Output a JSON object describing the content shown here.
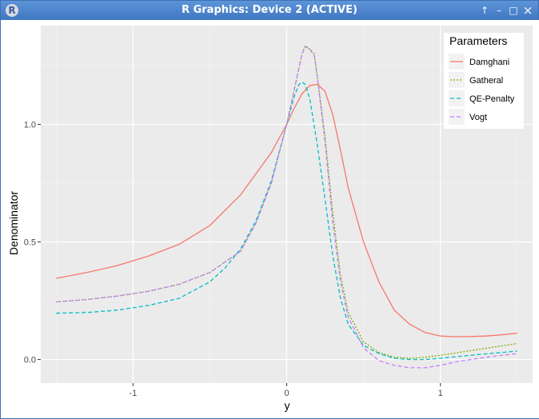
{
  "window": {
    "title": "R Graphics: Device 2 (ACTIVE)",
    "app_icon_letter": "R",
    "controls": {
      "up": "↑",
      "minimize": "–",
      "maximize": "□",
      "close": "×"
    }
  },
  "chart_data": {
    "type": "line",
    "xlabel": "y",
    "ylabel": "Denominator",
    "xlim": [
      -1.6,
      1.6
    ],
    "ylim": [
      -0.1,
      1.42
    ],
    "x_ticks": [
      {
        "v": -1,
        "label": "-1"
      },
      {
        "v": 0,
        "label": "0"
      },
      {
        "v": 1,
        "label": "1"
      }
    ],
    "y_ticks": [
      {
        "v": 0,
        "label": "0.0"
      },
      {
        "v": 0.5,
        "label": "0.5"
      },
      {
        "v": 1,
        "label": "1.0"
      }
    ],
    "grid": true,
    "legend": {
      "title": "Parameters",
      "position": "top-right"
    },
    "series": [
      {
        "name": "Damghani",
        "color": "#F8766D",
        "dash": "solid",
        "x": [
          -1.5,
          -1.3,
          -1.1,
          -0.9,
          -0.7,
          -0.5,
          -0.3,
          -0.2,
          -0.1,
          0,
          0.05,
          0.1,
          0.15,
          0.2,
          0.25,
          0.3,
          0.35,
          0.4,
          0.5,
          0.6,
          0.7,
          0.8,
          0.9,
          1.0,
          1.1,
          1.2,
          1.3,
          1.4,
          1.5
        ],
        "y": [
          0.345,
          0.37,
          0.4,
          0.44,
          0.49,
          0.57,
          0.7,
          0.79,
          0.88,
          1.0,
          1.07,
          1.13,
          1.165,
          1.17,
          1.14,
          1.04,
          0.89,
          0.73,
          0.5,
          0.33,
          0.21,
          0.15,
          0.115,
          0.1,
          0.097,
          0.098,
          0.1,
          0.105,
          0.112
        ]
      },
      {
        "name": "Gatheral",
        "color": "#7CAE00",
        "dash": "dot",
        "x": [
          -1.5,
          -1.3,
          -1.1,
          -0.9,
          -0.7,
          -0.5,
          -0.3,
          -0.2,
          -0.1,
          0,
          0.05,
          0.1,
          0.12,
          0.15,
          0.18,
          0.2,
          0.25,
          0.3,
          0.35,
          0.4,
          0.5,
          0.6,
          0.7,
          0.8,
          0.9,
          1.0,
          1.1,
          1.2,
          1.3,
          1.4,
          1.5
        ],
        "y": [
          0.245,
          0.255,
          0.27,
          0.29,
          0.32,
          0.37,
          0.46,
          0.58,
          0.75,
          1.0,
          1.15,
          1.3,
          1.335,
          1.32,
          1.3,
          1.2,
          0.95,
          0.62,
          0.36,
          0.2,
          0.075,
          0.03,
          0.01,
          0.005,
          0.01,
          0.018,
          0.028,
          0.038,
          0.048,
          0.058,
          0.068
        ]
      },
      {
        "name": "QE-Penalty",
        "color": "#00BFC4",
        "dash": "dash",
        "x": [
          -1.5,
          -1.3,
          -1.1,
          -0.9,
          -0.7,
          -0.5,
          -0.4,
          -0.3,
          -0.2,
          -0.1,
          0,
          0.05,
          0.08,
          0.1,
          0.12,
          0.15,
          0.2,
          0.25,
          0.3,
          0.35,
          0.4,
          0.5,
          0.6,
          0.7,
          0.8,
          0.9,
          1.0,
          1.1,
          1.2,
          1.3,
          1.4,
          1.5
        ],
        "y": [
          0.197,
          0.2,
          0.21,
          0.23,
          0.26,
          0.33,
          0.39,
          0.47,
          0.59,
          0.76,
          1.0,
          1.12,
          1.17,
          1.18,
          1.17,
          1.11,
          0.91,
          0.68,
          0.44,
          0.26,
          0.15,
          0.06,
          0.025,
          0.005,
          0.0,
          0.0,
          0.005,
          0.012,
          0.018,
          0.024,
          0.03,
          0.036
        ]
      },
      {
        "name": "Vogt",
        "color": "#C77CFF",
        "dash": "dash",
        "x": [
          -1.5,
          -1.3,
          -1.1,
          -0.9,
          -0.7,
          -0.5,
          -0.3,
          -0.2,
          -0.1,
          0,
          0.05,
          0.1,
          0.12,
          0.15,
          0.18,
          0.2,
          0.25,
          0.3,
          0.35,
          0.4,
          0.5,
          0.6,
          0.7,
          0.8,
          0.9,
          1.0,
          1.1,
          1.2,
          1.3,
          1.4,
          1.5
        ],
        "y": [
          0.245,
          0.255,
          0.27,
          0.29,
          0.32,
          0.37,
          0.46,
          0.58,
          0.75,
          1.0,
          1.15,
          1.3,
          1.33,
          1.32,
          1.29,
          1.2,
          0.92,
          0.58,
          0.33,
          0.18,
          0.05,
          -0.005,
          -0.025,
          -0.035,
          -0.035,
          -0.025,
          -0.01,
          0.0,
          0.01,
          0.018,
          0.025
        ]
      }
    ]
  }
}
